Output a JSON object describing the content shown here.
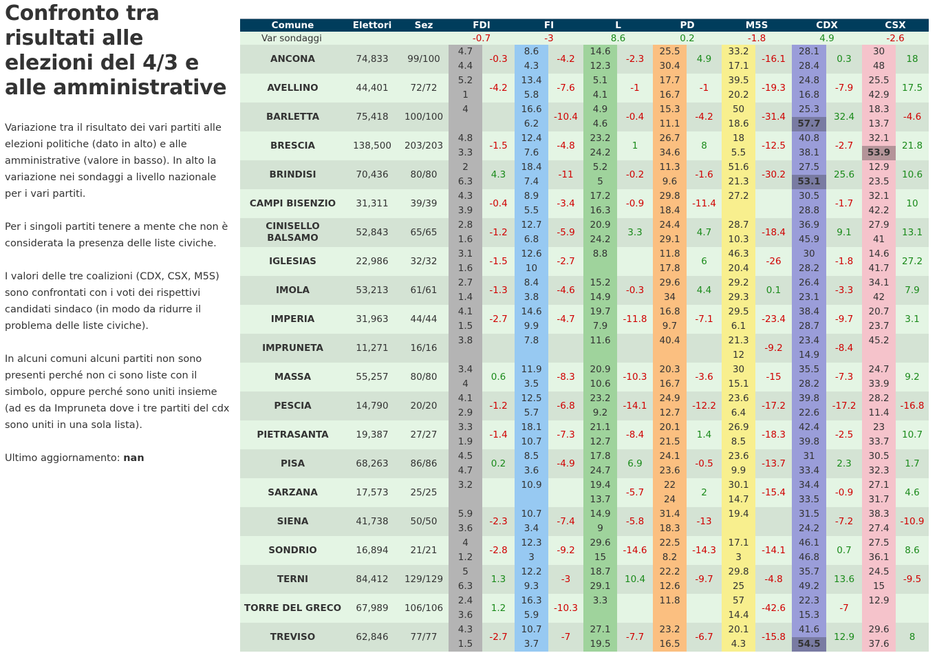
{
  "title": "Confronto tra risultati alle elezioni del 4/3 e alle amministrative",
  "paragraphs": [
    "Variazione tra il risultato dei vari partiti alle elezioni politiche (dato in alto) e alle amministrative (valore in basso). In alto la variazione nei sondaggi a livello nazionale per i vari partiti.",
    "Per i singoli partiti tenere a mente che non è considerata la presenza delle liste civiche.",
    "I valori delle tre coalizioni (CDX, CSX, M5S) sono confrontati con i voti dei rispettivi candidati sindaco (in modo da ridurre il problema delle liste civiche).",
    "In alcuni comuni alcuni partiti non sono presenti perché non ci sono liste con il simbolo, oppure perché sono uniti insieme (ad es da Impruneta dove i tre partiti del cdx sono uniti in una sola lista)."
  ],
  "updated_label": "Ultimo aggiornamento:",
  "updated_value": "nan",
  "headers": {
    "comune": "Comune",
    "elettori": "Elettori",
    "sez": "Sez",
    "parties": [
      "FDI",
      "FI",
      "L",
      "PD",
      "M5S",
      "CDX",
      "CSX"
    ]
  },
  "var_label": "Var sondaggi",
  "var_values": [
    "-0.7",
    "-3",
    "8.6",
    "0.2",
    "-1.8",
    "4.9",
    "-2.6"
  ],
  "colors": {
    "header_bg": "#003d5c",
    "row_a": "#d4e3d4",
    "row_b": "#e4f5e4",
    "FDI": "#b4b4b4",
    "FI": "#97c9f2",
    "L": "#9fd39c",
    "PD": "#fbbf80",
    "M5S": "#f8ef8e",
    "CDX": "#9a9dd9",
    "CSX": "#f5c3cb",
    "negative": "#d00000",
    "positive": "#1a8a1a"
  },
  "rows": [
    {
      "comune": "ANCONA",
      "elettori": "74,833",
      "sez": "99/100",
      "c": [
        [
          "4.7",
          "4.4",
          "-0.3",
          ""
        ],
        [
          "8.6",
          "4.3",
          "-4.2",
          ""
        ],
        [
          "14.6",
          "12.3",
          "-2.3",
          ""
        ],
        [
          "25.5",
          "30.4",
          "4.9",
          ""
        ],
        [
          "33.2",
          "17.1",
          "-16.1",
          ""
        ],
        [
          "28.1",
          "28.4",
          "0.3",
          ""
        ],
        [
          "30",
          "48",
          "18",
          ""
        ]
      ]
    },
    {
      "comune": "AVELLINO",
      "elettori": "44,401",
      "sez": "72/72",
      "c": [
        [
          "5.2",
          "1",
          "-4.2",
          ""
        ],
        [
          "13.4",
          "5.8",
          "-7.6",
          ""
        ],
        [
          "5.1",
          "4.1",
          "-1",
          ""
        ],
        [
          "17.7",
          "16.7",
          "-1",
          ""
        ],
        [
          "39.5",
          "20.2",
          "-19.3",
          ""
        ],
        [
          "24.8",
          "16.8",
          "-7.9",
          ""
        ],
        [
          "25.5",
          "42.9",
          "17.5",
          ""
        ]
      ]
    },
    {
      "comune": "BARLETTA",
      "elettori": "75,418",
      "sez": "100/100",
      "c": [
        [
          "4",
          "",
          "",
          ""
        ],
        [
          "16.6",
          "6.2",
          "-10.4",
          ""
        ],
        [
          "4.9",
          "4.6",
          "-0.4",
          ""
        ],
        [
          "15.3",
          "11.1",
          "-4.2",
          ""
        ],
        [
          "50",
          "18.6",
          "-31.4",
          ""
        ],
        [
          "25.3",
          "57.7",
          "32.4",
          "w"
        ],
        [
          "18.3",
          "13.7",
          "-4.6",
          ""
        ]
      ]
    },
    {
      "comune": "BRESCIA",
      "elettori": "138,500",
      "sez": "203/203",
      "c": [
        [
          "4.8",
          "3.3",
          "-1.5",
          ""
        ],
        [
          "12.4",
          "7.6",
          "-4.8",
          ""
        ],
        [
          "23.2",
          "24.2",
          "1",
          ""
        ],
        [
          "26.7",
          "34.6",
          "8",
          ""
        ],
        [
          "18",
          "5.5",
          "-12.5",
          ""
        ],
        [
          "40.8",
          "38.1",
          "-2.7",
          ""
        ],
        [
          "32.1",
          "53.9",
          "21.8",
          "w"
        ]
      ]
    },
    {
      "comune": "BRINDISI",
      "elettori": "70,436",
      "sez": "80/80",
      "c": [
        [
          "2",
          "6.3",
          "4.3",
          ""
        ],
        [
          "18.4",
          "7.4",
          "-11",
          ""
        ],
        [
          "5.2",
          "5",
          "-0.2",
          ""
        ],
        [
          "11.3",
          "9.6",
          "-1.6",
          ""
        ],
        [
          "51.6",
          "21.3",
          "-30.2",
          ""
        ],
        [
          "27.5",
          "53.1",
          "25.6",
          "w"
        ],
        [
          "12.9",
          "23.5",
          "10.6",
          ""
        ]
      ]
    },
    {
      "comune": "CAMPI BISENZIO",
      "elettori": "31,311",
      "sez": "39/39",
      "c": [
        [
          "4.3",
          "3.9",
          "-0.4",
          ""
        ],
        [
          "8.9",
          "5.5",
          "-3.4",
          ""
        ],
        [
          "17.2",
          "16.3",
          "-0.9",
          ""
        ],
        [
          "29.8",
          "18.4",
          "-11.4",
          ""
        ],
        [
          "27.2",
          "",
          "",
          ""
        ],
        [
          "30.5",
          "28.8",
          "-1.7",
          ""
        ],
        [
          "32.1",
          "42.2",
          "10",
          ""
        ]
      ]
    },
    {
      "comune": "CINISELLO BALSAMO",
      "elettori": "52,843",
      "sez": "65/65",
      "c": [
        [
          "2.8",
          "1.6",
          "-1.2",
          ""
        ],
        [
          "12.7",
          "6.8",
          "-5.9",
          ""
        ],
        [
          "20.9",
          "24.2",
          "3.3",
          ""
        ],
        [
          "24.4",
          "29.1",
          "4.7",
          ""
        ],
        [
          "28.7",
          "10.3",
          "-18.4",
          ""
        ],
        [
          "36.9",
          "45.9",
          "9.1",
          ""
        ],
        [
          "27.9",
          "41",
          "13.1",
          ""
        ]
      ]
    },
    {
      "comune": "IGLESIAS",
      "elettori": "22,986",
      "sez": "32/32",
      "c": [
        [
          "3.1",
          "1.6",
          "-1.5",
          ""
        ],
        [
          "12.6",
          "10",
          "-2.7",
          ""
        ],
        [
          "8.8",
          "",
          "",
          ""
        ],
        [
          "11.8",
          "17.8",
          "6",
          ""
        ],
        [
          "46.3",
          "20.4",
          "-26",
          ""
        ],
        [
          "30",
          "28.2",
          "-1.8",
          ""
        ],
        [
          "14.6",
          "41.7",
          "27.2",
          ""
        ]
      ]
    },
    {
      "comune": "IMOLA",
      "elettori": "53,213",
      "sez": "61/61",
      "c": [
        [
          "2.7",
          "1.4",
          "-1.3",
          ""
        ],
        [
          "8.4",
          "3.8",
          "-4.6",
          ""
        ],
        [
          "15.2",
          "14.9",
          "-0.3",
          ""
        ],
        [
          "29.6",
          "34",
          "4.4",
          ""
        ],
        [
          "29.2",
          "29.3",
          "0.1",
          ""
        ],
        [
          "26.4",
          "23.1",
          "-3.3",
          ""
        ],
        [
          "34.1",
          "42",
          "7.9",
          ""
        ]
      ]
    },
    {
      "comune": "IMPERIA",
      "elettori": "31,963",
      "sez": "44/44",
      "c": [
        [
          "4.1",
          "1.5",
          "-2.7",
          ""
        ],
        [
          "14.6",
          "9.9",
          "-4.7",
          ""
        ],
        [
          "19.7",
          "7.9",
          "-11.8",
          ""
        ],
        [
          "16.8",
          "9.7",
          "-7.1",
          ""
        ],
        [
          "29.5",
          "6.1",
          "-23.4",
          ""
        ],
        [
          "38.4",
          "28.7",
          "-9.7",
          ""
        ],
        [
          "20.7",
          "23.7",
          "3.1",
          ""
        ]
      ]
    },
    {
      "comune": "IMPRUNETA",
      "elettori": "11,271",
      "sez": "16/16",
      "c": [
        [
          "3.8",
          "",
          "",
          ""
        ],
        [
          "7.8",
          "",
          "",
          ""
        ],
        [
          "11.6",
          "",
          "",
          ""
        ],
        [
          "40.4",
          "",
          "",
          ""
        ],
        [
          "21.3",
          "12",
          "-9.2",
          ""
        ],
        [
          "23.4",
          "14.9",
          "-8.4",
          ""
        ],
        [
          "45.2",
          "",
          "",
          ""
        ]
      ]
    },
    {
      "comune": "MASSA",
      "elettori": "55,257",
      "sez": "80/80",
      "c": [
        [
          "3.4",
          "4",
          "0.6",
          ""
        ],
        [
          "11.9",
          "3.5",
          "-8.3",
          ""
        ],
        [
          "20.9",
          "10.6",
          "-10.3",
          ""
        ],
        [
          "20.3",
          "16.7",
          "-3.6",
          ""
        ],
        [
          "30",
          "15.1",
          "-15",
          ""
        ],
        [
          "35.5",
          "28.2",
          "-7.3",
          ""
        ],
        [
          "24.7",
          "33.9",
          "9.2",
          ""
        ]
      ]
    },
    {
      "comune": "PESCIA",
      "elettori": "14,790",
      "sez": "20/20",
      "c": [
        [
          "4.1",
          "2.9",
          "-1.2",
          ""
        ],
        [
          "12.5",
          "5.7",
          "-6.8",
          ""
        ],
        [
          "23.2",
          "9.2",
          "-14.1",
          ""
        ],
        [
          "24.9",
          "12.7",
          "-12.2",
          ""
        ],
        [
          "23.6",
          "6.4",
          "-17.2",
          ""
        ],
        [
          "39.8",
          "22.6",
          "-17.2",
          ""
        ],
        [
          "28.2",
          "11.4",
          "-16.8",
          ""
        ]
      ]
    },
    {
      "comune": "PIETRASANTA",
      "elettori": "19,387",
      "sez": "27/27",
      "c": [
        [
          "3.3",
          "1.9",
          "-1.4",
          ""
        ],
        [
          "18.1",
          "10.7",
          "-7.3",
          ""
        ],
        [
          "21.1",
          "12.7",
          "-8.4",
          ""
        ],
        [
          "20.1",
          "21.5",
          "1.4",
          ""
        ],
        [
          "26.9",
          "8.5",
          "-18.3",
          ""
        ],
        [
          "42.4",
          "39.8",
          "-2.5",
          ""
        ],
        [
          "23",
          "33.7",
          "10.7",
          ""
        ]
      ]
    },
    {
      "comune": "PISA",
      "elettori": "68,263",
      "sez": "86/86",
      "c": [
        [
          "4.5",
          "4.7",
          "0.2",
          ""
        ],
        [
          "8.5",
          "3.6",
          "-4.9",
          ""
        ],
        [
          "17.8",
          "24.7",
          "6.9",
          ""
        ],
        [
          "24.1",
          "23.6",
          "-0.5",
          ""
        ],
        [
          "23.6",
          "9.9",
          "-13.7",
          ""
        ],
        [
          "31",
          "33.4",
          "2.3",
          ""
        ],
        [
          "30.5",
          "32.3",
          "1.7",
          ""
        ]
      ]
    },
    {
      "comune": "SARZANA",
      "elettori": "17,573",
      "sez": "25/25",
      "c": [
        [
          "3.2",
          "",
          "",
          ""
        ],
        [
          "10.9",
          "",
          "",
          ""
        ],
        [
          "19.4",
          "13.7",
          "-5.7",
          ""
        ],
        [
          "22",
          "24",
          "2",
          ""
        ],
        [
          "30.1",
          "14.7",
          "-15.4",
          ""
        ],
        [
          "34.4",
          "33.5",
          "-0.9",
          ""
        ],
        [
          "27.1",
          "31.7",
          "4.6",
          ""
        ]
      ]
    },
    {
      "comune": "SIENA",
      "elettori": "41,738",
      "sez": "50/50",
      "c": [
        [
          "5.9",
          "3.6",
          "-2.3",
          ""
        ],
        [
          "10.7",
          "3.4",
          "-7.4",
          ""
        ],
        [
          "14.9",
          "9",
          "-5.8",
          ""
        ],
        [
          "31.4",
          "18.3",
          "-13",
          ""
        ],
        [
          "19.4",
          "",
          "",
          ""
        ],
        [
          "31.5",
          "24.2",
          "-7.2",
          ""
        ],
        [
          "38.3",
          "27.4",
          "-10.9",
          ""
        ]
      ]
    },
    {
      "comune": "SONDRIO",
      "elettori": "16,894",
      "sez": "21/21",
      "c": [
        [
          "4",
          "1.2",
          "-2.8",
          ""
        ],
        [
          "12.3",
          "3",
          "-9.2",
          ""
        ],
        [
          "29.6",
          "15",
          "-14.6",
          ""
        ],
        [
          "22.5",
          "8.2",
          "-14.3",
          ""
        ],
        [
          "17.1",
          "3",
          "-14.1",
          ""
        ],
        [
          "46.1",
          "46.8",
          "0.7",
          ""
        ],
        [
          "27.5",
          "36.1",
          "8.6",
          ""
        ]
      ]
    },
    {
      "comune": "TERNI",
      "elettori": "84,412",
      "sez": "129/129",
      "c": [
        [
          "5",
          "6.3",
          "1.3",
          ""
        ],
        [
          "12.2",
          "9.3",
          "-3",
          ""
        ],
        [
          "18.7",
          "29.1",
          "10.4",
          ""
        ],
        [
          "22.2",
          "12.6",
          "-9.7",
          ""
        ],
        [
          "29.8",
          "25",
          "-4.8",
          ""
        ],
        [
          "35.7",
          "49.2",
          "13.6",
          ""
        ],
        [
          "24.5",
          "15",
          "-9.5",
          ""
        ]
      ]
    },
    {
      "comune": "TORRE DEL GRECO",
      "elettori": "67,989",
      "sez": "106/106",
      "c": [
        [
          "2.4",
          "3.6",
          "1.2",
          ""
        ],
        [
          "16.3",
          "5.9",
          "-10.3",
          ""
        ],
        [
          "3.3",
          "",
          "",
          ""
        ],
        [
          "11.8",
          "",
          "",
          ""
        ],
        [
          "57",
          "14.4",
          "-42.6",
          ""
        ],
        [
          "22.3",
          "15.3",
          "-7",
          ""
        ],
        [
          "12.9",
          "",
          "",
          ""
        ]
      ]
    },
    {
      "comune": "TREVISO",
      "elettori": "62,846",
      "sez": "77/77",
      "c": [
        [
          "4.3",
          "1.5",
          "-2.7",
          ""
        ],
        [
          "10.7",
          "3.7",
          "-7",
          ""
        ],
        [
          "27.1",
          "19.5",
          "-7.7",
          ""
        ],
        [
          "23.2",
          "16.5",
          "-6.7",
          ""
        ],
        [
          "20.1",
          "4.3",
          "-15.8",
          ""
        ],
        [
          "41.6",
          "54.5",
          "12.9",
          "w"
        ],
        [
          "29.6",
          "37.6",
          "8",
          ""
        ]
      ]
    }
  ]
}
